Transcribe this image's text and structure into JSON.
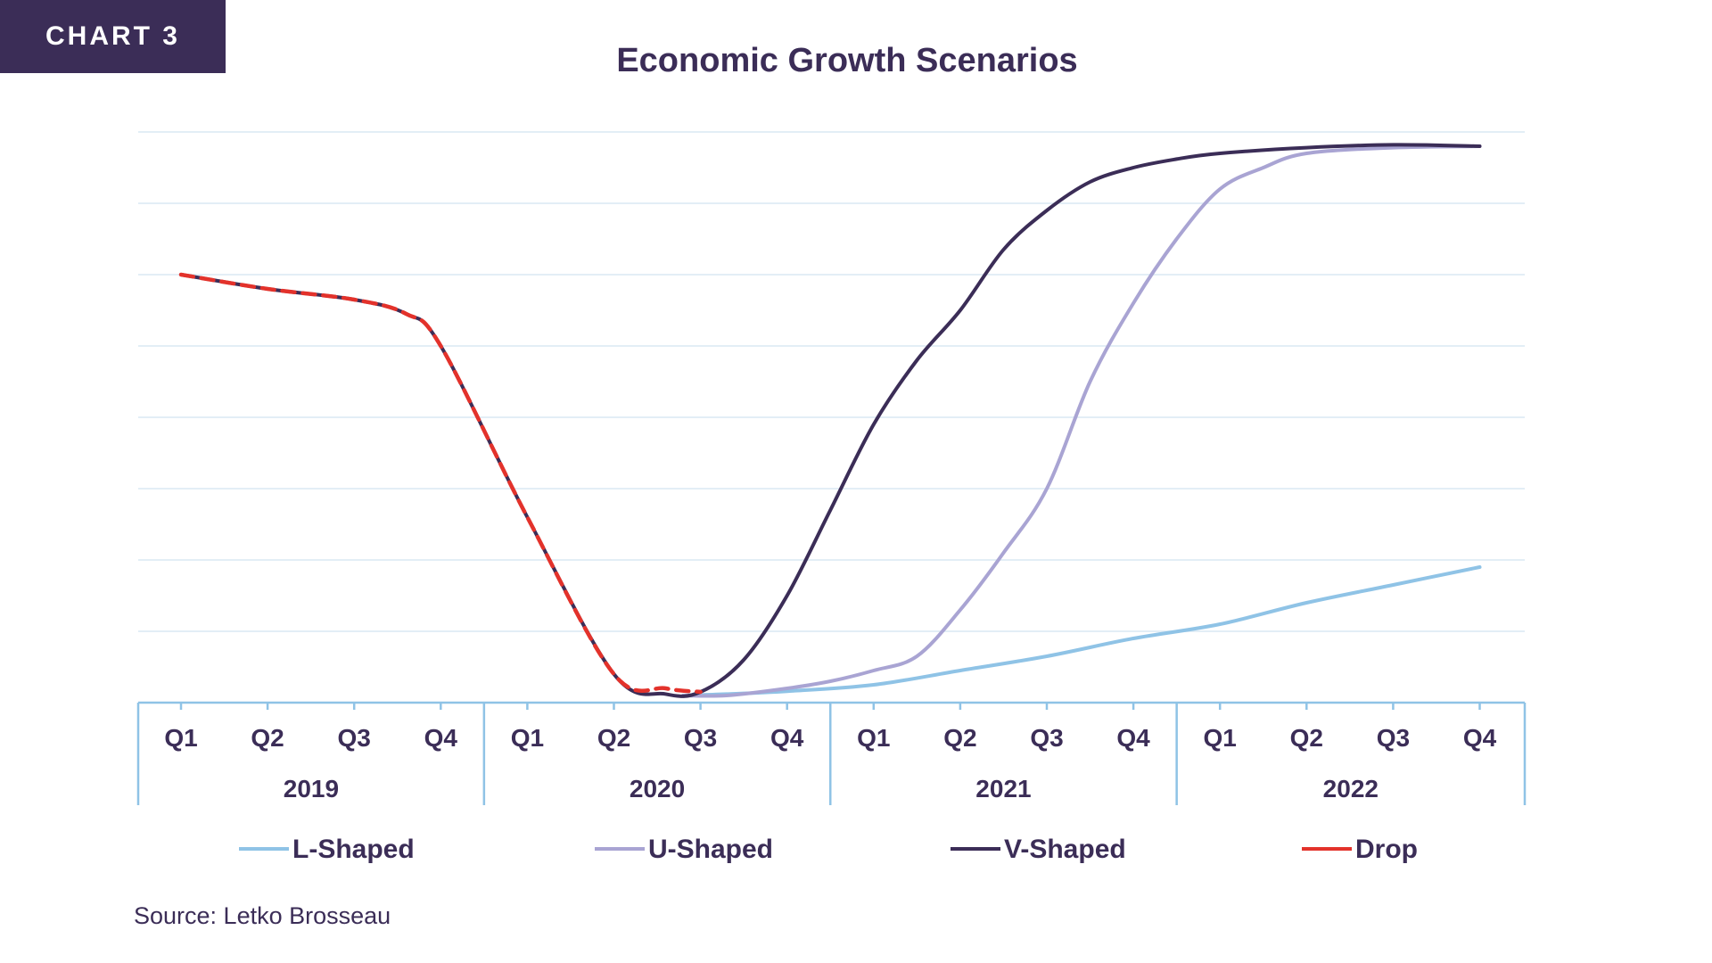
{
  "tag": "CHART 3",
  "source": "Source: Letko Brosseau",
  "colors": {
    "tag_bg": "#3b2d57",
    "text": "#3b2d57",
    "grid": "#e3eef6",
    "axis": "#8fc3e6"
  },
  "chart_data": {
    "type": "line",
    "title": "Economic Growth Scenarios",
    "xlabel": "",
    "ylabel": "",
    "ylim": [
      0,
      8
    ],
    "grid": true,
    "legend_position": "bottom",
    "categories": [
      "Q1",
      "Q2",
      "Q3",
      "Q4",
      "Q1",
      "Q2",
      "Q3",
      "Q4",
      "Q1",
      "Q2",
      "Q3",
      "Q4",
      "Q1",
      "Q2",
      "Q3",
      "Q4"
    ],
    "groups": [
      {
        "label": "2019",
        "start": 0,
        "end": 3
      },
      {
        "label": "2020",
        "start": 4,
        "end": 7
      },
      {
        "label": "2021",
        "start": 8,
        "end": 11
      },
      {
        "label": "2022",
        "start": 12,
        "end": 15
      }
    ],
    "series": [
      {
        "name": "L-Shaped",
        "color": "#8fc3e6",
        "dash": false,
        "x": [
          5.8,
          6.3,
          7.0,
          8.0,
          9.0,
          10.0,
          11.0,
          12.0,
          13.0,
          14.0,
          15.0
        ],
        "values": [
          0.1,
          0.12,
          0.16,
          0.25,
          0.45,
          0.65,
          0.9,
          1.1,
          1.4,
          1.65,
          1.9
        ]
      },
      {
        "name": "U-Shaped",
        "color": "#a9a4d3",
        "dash": false,
        "x": [
          5.8,
          6.3,
          7.0,
          7.5,
          8.0,
          8.5,
          9.0,
          9.5,
          10.0,
          10.5,
          11.0,
          11.5,
          12.0,
          12.5,
          13.0,
          14.0,
          15.0
        ],
        "values": [
          0.1,
          0.1,
          0.2,
          0.3,
          0.45,
          0.65,
          1.3,
          2.1,
          3.0,
          4.5,
          5.6,
          6.5,
          7.2,
          7.5,
          7.7,
          7.78,
          7.8
        ]
      },
      {
        "name": "V-Shaped",
        "color": "#3b2d57",
        "dash": false,
        "x": [
          0,
          1,
          2,
          2.6,
          3,
          4,
          5,
          5.6,
          6,
          6.5,
          7,
          7.5,
          8,
          8.5,
          9,
          9.5,
          10,
          10.5,
          11,
          11.5,
          12,
          13,
          14,
          15
        ],
        "values": [
          6.0,
          5.8,
          5.65,
          5.45,
          5.0,
          2.6,
          0.4,
          0.12,
          0.15,
          0.6,
          1.5,
          2.7,
          3.9,
          4.8,
          5.5,
          6.35,
          6.9,
          7.3,
          7.5,
          7.62,
          7.7,
          7.78,
          7.82,
          7.8
        ]
      },
      {
        "name": "Drop",
        "color": "#e3322b",
        "dash": true,
        "x": [
          0,
          1,
          2,
          2.6,
          3,
          4,
          5,
          5.6,
          6
        ],
        "values": [
          6.0,
          5.8,
          5.65,
          5.45,
          5.0,
          2.6,
          0.4,
          0.2,
          0.15
        ]
      }
    ]
  }
}
